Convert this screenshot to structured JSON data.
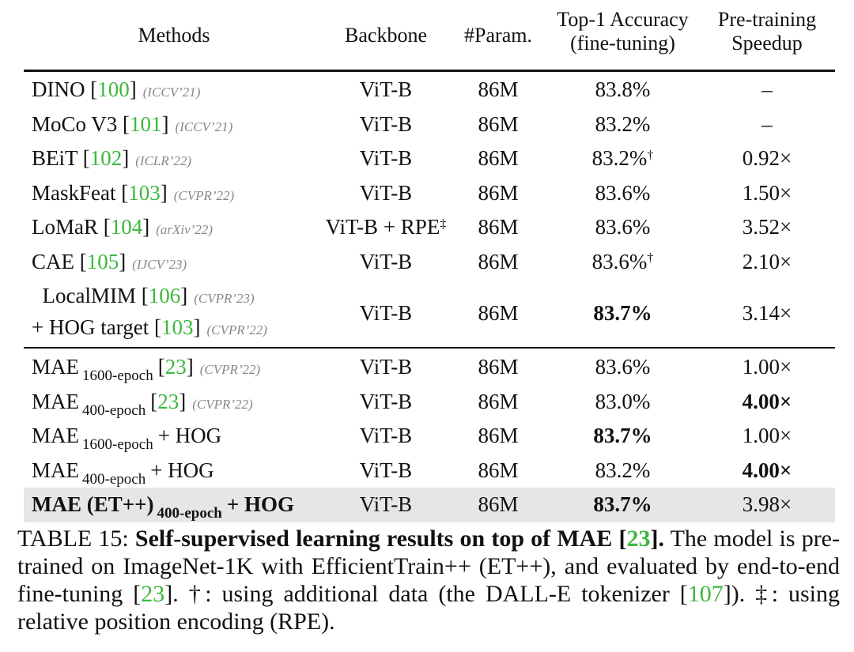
{
  "headers": {
    "methods": "Methods",
    "backbone": "Backbone",
    "param": "#Param.",
    "top1_line1": "Top-1 Accuracy",
    "top1_line2": "(fine-tuning)",
    "speedup_line1": "Pre-training",
    "speedup_line2": "Speedup"
  },
  "colors": {
    "reference": "#3cb83c",
    "venue": "#888888",
    "highlight_row": "#e6e6e6"
  },
  "groups": [
    [
      {
        "method": [
          [
            {
              "t": "DINO "
            },
            {
              "ref": "100"
            },
            {
              "v": "(ICCV’21)"
            }
          ]
        ],
        "backbone": "ViT-B",
        "param": "86M",
        "top1": "83.8%",
        "top1_mark": "",
        "top1_bold": false,
        "speedup": "–",
        "speedup_bold": false
      },
      {
        "method": [
          [
            {
              "t": "MoCo V3 "
            },
            {
              "ref": "101"
            },
            {
              "v": "(ICCV’21)"
            }
          ]
        ],
        "backbone": "ViT-B",
        "param": "86M",
        "top1": "83.2%",
        "top1_mark": "",
        "top1_bold": false,
        "speedup": "–",
        "speedup_bold": false
      },
      {
        "method": [
          [
            {
              "t": "BEiT "
            },
            {
              "ref": "102"
            },
            {
              "v": "(ICLR’22)"
            }
          ]
        ],
        "backbone": "ViT-B",
        "param": "86M",
        "top1": "83.2%",
        "top1_mark": "†",
        "top1_bold": false,
        "speedup": "0.92×",
        "speedup_bold": false
      },
      {
        "method": [
          [
            {
              "t": "MaskFeat "
            },
            {
              "ref": "103"
            },
            {
              "v": "(CVPR’22)"
            }
          ]
        ],
        "backbone": "ViT-B",
        "param": "86M",
        "top1": "83.6%",
        "top1_mark": "",
        "top1_bold": false,
        "speedup": "1.50×",
        "speedup_bold": false
      },
      {
        "method": [
          [
            {
              "t": "LoMaR "
            },
            {
              "ref": "104"
            },
            {
              "v": "(arXiv’22)"
            }
          ]
        ],
        "backbone": "ViT-B + RPE",
        "backbone_mark": "‡",
        "param": "86M",
        "top1": "83.6%",
        "top1_mark": "",
        "top1_bold": false,
        "speedup": "3.52×",
        "speedup_bold": false
      },
      {
        "method": [
          [
            {
              "t": "CAE "
            },
            {
              "ref": "105"
            },
            {
              "v": "(IJCV’23)"
            }
          ]
        ],
        "backbone": "ViT-B",
        "param": "86M",
        "top1": "83.6%",
        "top1_mark": "†",
        "top1_bold": false,
        "speedup": "2.10×",
        "speedup_bold": false
      },
      {
        "method": [
          [
            {
              "t": "  LocalMIM "
            },
            {
              "ref": "106"
            },
            {
              "v": "(CVPR’23)"
            }
          ],
          [
            {
              "t": "+ HOG target "
            },
            {
              "ref": "103"
            },
            {
              "v": "(CVPR’22)"
            }
          ]
        ],
        "backbone": "ViT-B",
        "param": "86M",
        "top1": "83.7%",
        "top1_mark": "",
        "top1_bold": true,
        "speedup": "3.14×",
        "speedup_bold": false
      }
    ],
    [
      {
        "method": [
          [
            {
              "t": "MAE"
            },
            {
              "s": "1600-epoch"
            },
            {
              "ref": "23"
            },
            {
              "v": "(CVPR’22)"
            }
          ]
        ],
        "backbone": "ViT-B",
        "param": "86M",
        "top1": "83.6%",
        "top1_mark": "",
        "top1_bold": false,
        "speedup": "1.00×",
        "speedup_bold": false
      },
      {
        "method": [
          [
            {
              "t": "MAE"
            },
            {
              "s": "400-epoch"
            },
            {
              "ref": "23"
            },
            {
              "v": "(CVPR’22)"
            }
          ]
        ],
        "backbone": "ViT-B",
        "param": "86M",
        "top1": "83.0%",
        "top1_mark": "",
        "top1_bold": false,
        "speedup": "4.00×",
        "speedup_bold": true
      },
      {
        "method": [
          [
            {
              "t": "MAE"
            },
            {
              "s": "1600-epoch"
            },
            {
              "t": "+ HOG"
            }
          ]
        ],
        "backbone": "ViT-B",
        "param": "86M",
        "top1": "83.7%",
        "top1_mark": "",
        "top1_bold": true,
        "speedup": "1.00×",
        "speedup_bold": false
      },
      {
        "method": [
          [
            {
              "t": "MAE"
            },
            {
              "s": "400-epoch"
            },
            {
              "t": "+ HOG"
            }
          ]
        ],
        "backbone": "ViT-B",
        "param": "86M",
        "top1": "83.2%",
        "top1_mark": "",
        "top1_bold": false,
        "speedup": "4.00×",
        "speedup_bold": true
      },
      {
        "method": [
          [
            {
              "t": "MAE (ET++)"
            },
            {
              "s": "400-epoch"
            },
            {
              "t": "+ HOG"
            }
          ]
        ],
        "method_bold": true,
        "highlight": true,
        "backbone": "ViT-B",
        "param": "86M",
        "top1": "83.7%",
        "top1_mark": "",
        "top1_bold": true,
        "speedup": "3.98×",
        "speedup_bold": false
      }
    ]
  ],
  "caption": {
    "label": "TABLE 15: ",
    "title": "Self-supervised learning results on top of MAE [",
    "title_ref": "23",
    "title_end": "].",
    "p1": " The model is pre-trained on ImageNet-1K with EfficientTrain++ (ET++), and evaluated by end-to-end fine-tuning [",
    "p1_ref": "23",
    "p2": "]. †: using additional data (the DALL-E tokenizer [",
    "p2_ref": "107",
    "p3": "]). ‡: using relative position encoding (RPE)."
  }
}
